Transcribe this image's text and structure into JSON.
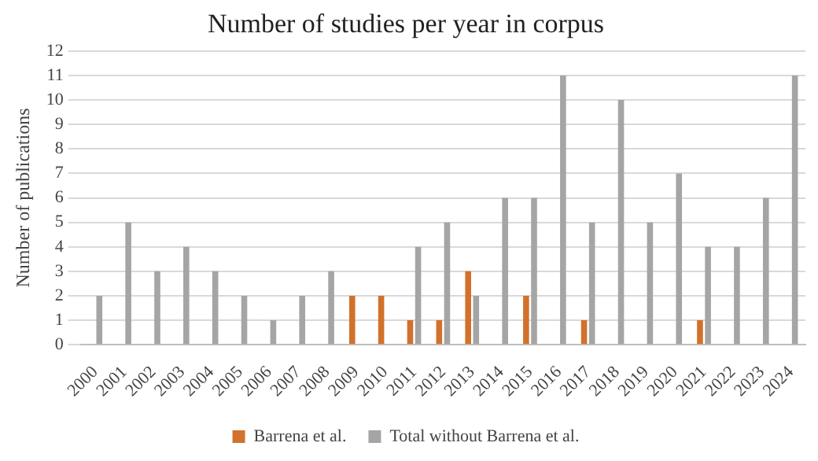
{
  "chart_data": {
    "type": "bar",
    "title": "Number of studies per year in corpus",
    "ylabel": "Number of publications",
    "categories": [
      "2000",
      "2001",
      "2002",
      "2003",
      "2004",
      "2005",
      "2006",
      "2007",
      "2008",
      "2009",
      "2010",
      "2011",
      "2012",
      "2013",
      "2014",
      "2015",
      "2016",
      "2017",
      "2018",
      "2019",
      "2020",
      "2021",
      "2022",
      "2023",
      "2024"
    ],
    "series": [
      {
        "name": "Barrena et al.",
        "color": "#d2712b",
        "values": [
          null,
          null,
          null,
          null,
          null,
          null,
          null,
          null,
          null,
          2,
          2,
          1,
          1,
          3,
          null,
          2,
          null,
          1,
          null,
          null,
          null,
          1,
          null,
          null,
          null
        ]
      },
      {
        "name": "Total without Barrena et al.",
        "color": "#a5a5a5",
        "values": [
          2,
          5,
          3,
          4,
          3,
          2,
          1,
          2,
          3,
          null,
          null,
          4,
          5,
          2,
          6,
          6,
          11,
          5,
          10,
          5,
          7,
          4,
          4,
          6,
          11
        ]
      }
    ],
    "ylim": [
      0,
      12
    ],
    "yticks": [
      0,
      1,
      2,
      3,
      4,
      5,
      6,
      7,
      8,
      9,
      10,
      11,
      12
    ],
    "grid": "y",
    "legend": "bottom"
  }
}
